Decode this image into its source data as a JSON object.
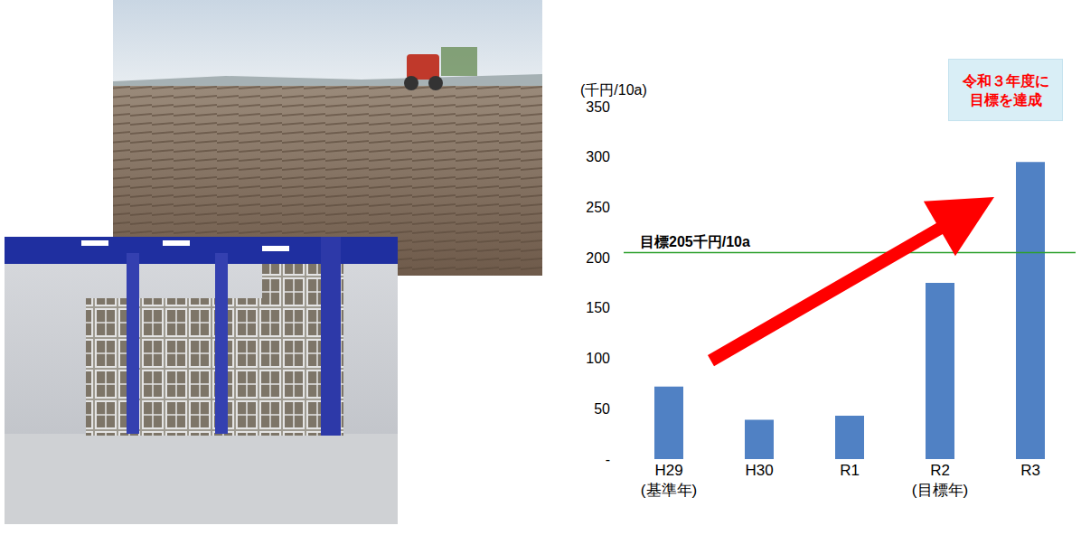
{
  "chart_data": {
    "type": "bar",
    "categories": [
      "H29",
      "H30",
      "R1",
      "R2",
      "R3"
    ],
    "values": [
      72,
      39,
      43,
      175,
      295
    ],
    "color": "#5081c4",
    "x_notes": [
      "(基準年)",
      null,
      null,
      "(目標年)",
      null
    ],
    "y_label": "(千円/10a)",
    "ylim": [
      0,
      350
    ],
    "yticks": [
      {
        "value": 0,
        "label": "-"
      },
      50,
      100,
      150,
      200,
      250,
      300,
      350
    ],
    "grid": false,
    "target": {
      "value": 205,
      "label": "目標205千円/10a",
      "color": "#2ca02c"
    },
    "callout": {
      "lines": [
        "令和３年度に",
        "目標を達成"
      ],
      "color": "#ff0000"
    }
  }
}
